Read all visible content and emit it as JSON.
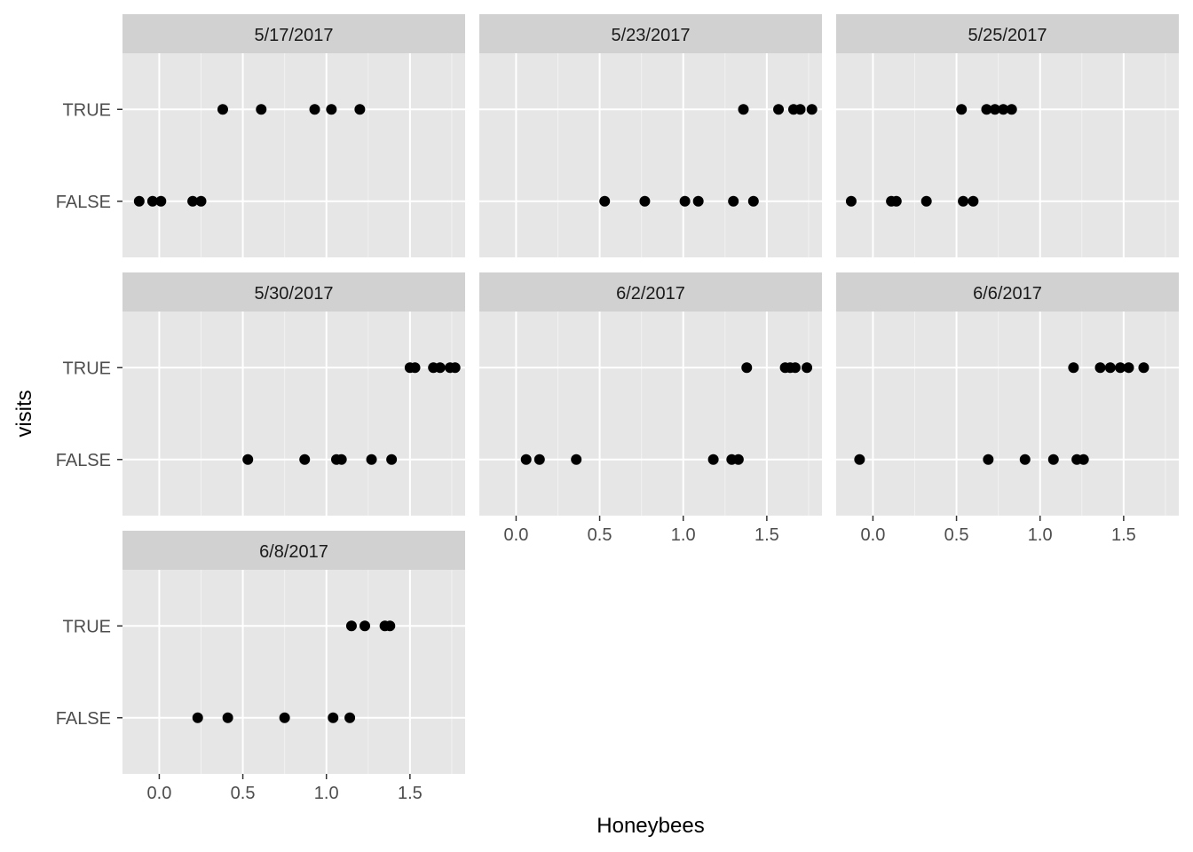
{
  "chart_data": {
    "type": "scatter",
    "xlabel": "Honeybees",
    "ylabel": "visits",
    "categories": [
      "FALSE",
      "TRUE"
    ],
    "xlim": [
      -0.22,
      1.83
    ],
    "x_ticks": [
      0.0,
      0.5,
      1.0,
      1.5
    ],
    "x_tick_labels": [
      "0.0",
      "0.5",
      "1.0",
      "1.5"
    ],
    "grid": true,
    "panel_background": "#e6e6e6",
    "strip_background": "#d1d1d1",
    "point_color": "#000000",
    "facets": [
      {
        "label": "5/17/2017",
        "TRUE": [
          0.38,
          0.61,
          0.93,
          1.03,
          1.2
        ],
        "FALSE": [
          -0.12,
          -0.04,
          0.01,
          0.2,
          0.25
        ]
      },
      {
        "label": "5/23/2017",
        "TRUE": [
          1.36,
          1.57,
          1.66,
          1.7,
          1.77
        ],
        "FALSE": [
          0.53,
          0.77,
          1.01,
          1.09,
          1.3,
          1.42
        ]
      },
      {
        "label": "5/25/2017",
        "TRUE": [
          0.53,
          0.68,
          0.73,
          0.78,
          0.83
        ],
        "FALSE": [
          -0.13,
          0.11,
          0.14,
          0.32,
          0.54,
          0.6
        ]
      },
      {
        "label": "5/30/2017",
        "TRUE": [
          1.5,
          1.53,
          1.64,
          1.68,
          1.74,
          1.77
        ],
        "FALSE": [
          0.53,
          0.87,
          1.06,
          1.09,
          1.27,
          1.39
        ]
      },
      {
        "label": "6/2/2017",
        "TRUE": [
          1.38,
          1.61,
          1.64,
          1.67,
          1.74
        ],
        "FALSE": [
          0.06,
          0.14,
          0.36,
          1.18,
          1.29,
          1.33
        ]
      },
      {
        "label": "6/6/2017",
        "TRUE": [
          1.2,
          1.36,
          1.42,
          1.48,
          1.53,
          1.62
        ],
        "FALSE": [
          -0.08,
          0.69,
          0.91,
          1.08,
          1.22,
          1.26
        ]
      },
      {
        "label": "6/8/2017",
        "TRUE": [
          1.15,
          1.23,
          1.35,
          1.38
        ],
        "FALSE": [
          0.23,
          0.41,
          0.75,
          1.04,
          1.14
        ]
      }
    ]
  }
}
